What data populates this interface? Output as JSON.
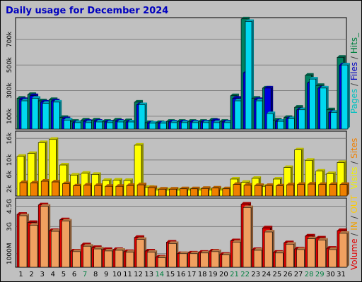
{
  "chart_data": {
    "type": "bar",
    "title": "Daily usage for December 2024",
    "categories": [
      "1",
      "2",
      "3",
      "4",
      "5",
      "6",
      "7",
      "8",
      "9",
      "10",
      "11",
      "12",
      "13",
      "14",
      "15",
      "16",
      "17",
      "18",
      "19",
      "20",
      "21",
      "22",
      "23",
      "24",
      "25",
      "26",
      "27",
      "28",
      "29",
      "30",
      "31"
    ],
    "weekend_days": [
      "7",
      "14",
      "21",
      "22",
      "28",
      "29"
    ],
    "panels": [
      {
        "name": "hits-files-pages",
        "ylim": [
          0,
          870000
        ],
        "yticks": [
          {
            "label": "100k",
            "value": 100000
          },
          {
            "label": "300k",
            "value": 300000
          },
          {
            "label": "500k",
            "value": 500000
          },
          {
            "label": "700k",
            "value": 700000
          }
        ],
        "side_label_parts": [
          {
            "text": "Pages",
            "color": "#00c0c0"
          },
          {
            "text": " / ",
            "color": "#404040"
          },
          {
            "text": "Files",
            "color": "#0000c0"
          },
          {
            "text": " / ",
            "color": "#404040"
          },
          {
            "text": "Hits_",
            "color": "#008040"
          }
        ],
        "series": [
          {
            "name": "Hits",
            "color": "#008060",
            "values": [
              240000,
              270000,
              220000,
              230000,
              90000,
              60000,
              70000,
              70000,
              60000,
              70000,
              65000,
              210000,
              50000,
              50000,
              60000,
              60000,
              60000,
              60000,
              70000,
              60000,
              260000,
              860000,
              240000,
              320000,
              70000,
              90000,
              170000,
              420000,
              340000,
              150000,
              560000
            ]
          },
          {
            "name": "Files",
            "color": "#0000e0",
            "values": [
              230000,
              260000,
              210000,
              220000,
              80000,
              50000,
              60000,
              60000,
              55000,
              60000,
              55000,
              190000,
              45000,
              45000,
              55000,
              55000,
              55000,
              55000,
              65000,
              55000,
              240000,
              440000,
              230000,
              320000,
              60000,
              80000,
              150000,
              360000,
              320000,
              130000,
              500000
            ]
          },
          {
            "name": "Pages",
            "color": "#00d8f0",
            "values": [
              220000,
              240000,
              200000,
              210000,
              70000,
              50000,
              50000,
              55000,
              50000,
              55000,
              55000,
              190000,
              45000,
              45000,
              50000,
              50000,
              50000,
              50000,
              50000,
              50000,
              220000,
              840000,
              220000,
              120000,
              60000,
              80000,
              150000,
              390000,
              320000,
              130000,
              500000
            ]
          }
        ]
      },
      {
        "name": "visits-sites",
        "ylim": [
          0,
          18000
        ],
        "yticks": [
          {
            "label": "2k",
            "value": 2000
          },
          {
            "label": "6k",
            "value": 6000
          },
          {
            "label": "10k",
            "value": 10000
          },
          {
            "label": "16k",
            "value": 16000
          }
        ],
        "side_label_parts": [
          {
            "text": "Visits",
            "color": "#f0f000"
          },
          {
            "text": " / ",
            "color": "#404040"
          },
          {
            "text": "Sites",
            "color": "#f08000"
          }
        ],
        "series": [
          {
            "name": "Visits",
            "color": "#ffff00",
            "values": [
              11000,
              11800,
              14800,
              15700,
              8600,
              5800,
              6300,
              6000,
              4300,
              4400,
              4300,
              14100,
              2400,
              1700,
              1700,
              1700,
              1700,
              1700,
              1700,
              1700,
              4700,
              3800,
              4900,
              2700,
              4700,
              7900,
              12800,
              9900,
              6900,
              6200,
              9300
            ]
          },
          {
            "name": "Sites",
            "color": "#f08000",
            "values": [
              3700,
              3600,
              4100,
              3900,
              3400,
              2800,
              3000,
              2900,
              2700,
              2700,
              2900,
              3100,
              2300,
              1900,
              1900,
              2000,
              2000,
              2100,
              2200,
              2000,
              3200,
              3000,
              2900,
              2900,
              2800,
              3100,
              3200,
              3300,
              3200,
              3200,
              3200
            ]
          }
        ]
      },
      {
        "name": "volume-in-out",
        "ylim": [
          0,
          5100
        ],
        "yticks": [
          {
            "label": "1000M",
            "value": 1000
          },
          {
            "label": "3G",
            "value": 3000
          },
          {
            "label": "4.5G",
            "value": 4500
          }
        ],
        "side_label_parts": [
          {
            "text": "Volume",
            "color": "#e00000"
          },
          {
            "text": " / ",
            "color": "#404040"
          },
          {
            "text": "IN",
            "color": "#f0a000"
          },
          {
            "text": " / ",
            "color": "#404040"
          },
          {
            "text": "OUT",
            "color": "#ffcc00"
          }
        ],
        "series": [
          {
            "name": "Volume",
            "color": "#e00000",
            "values": [
              3900,
              3300,
              4600,
              2700,
              3500,
              1200,
              1650,
              1450,
              1300,
              1300,
              1150,
              2200,
              1200,
              750,
              1850,
              1000,
              1050,
              1100,
              1200,
              950,
              1950,
              4650,
              1300,
              2900,
              1100,
              1800,
              1350,
              2300,
              2150,
              1400,
              2700
            ]
          },
          {
            "name": "OUT",
            "color": "#f0a060",
            "values": [
              3800,
              3100,
              4500,
              2650,
              3400,
              1150,
              1550,
              1350,
              1200,
              1250,
              1100,
              2050,
              1100,
              700,
              1750,
              1000,
              1000,
              1050,
              1150,
              900,
              1850,
              4400,
              1250,
              2600,
              1050,
              1700,
              1300,
              2100,
              2000,
              1300,
              2500
            ]
          }
        ]
      }
    ]
  }
}
